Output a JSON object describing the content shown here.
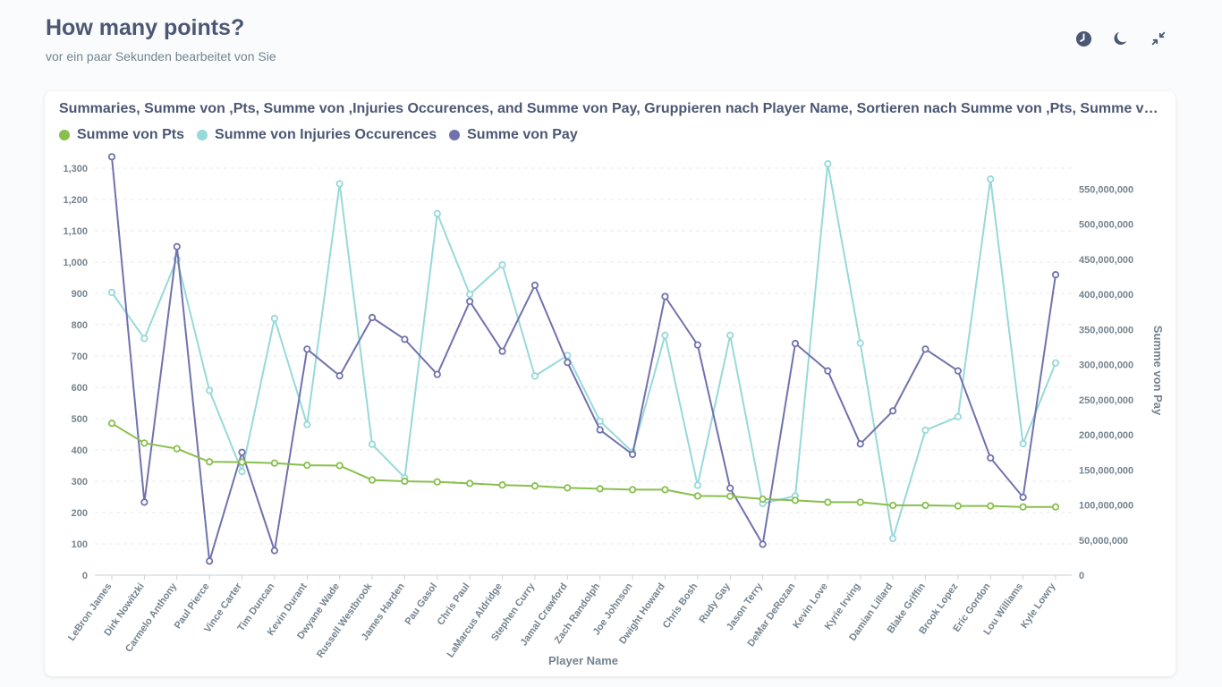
{
  "page": {
    "title": "How many points?",
    "subtitle": "vor ein paar Sekunden bearbeitet von Sie"
  },
  "header_actions": [
    {
      "icon": "clock-icon"
    },
    {
      "icon": "moon-icon"
    },
    {
      "icon": "collapse-icon"
    }
  ],
  "card": {
    "title": "Summaries, Summe von ,Pts, Summe von ,Injuries Occurences, and Summe von Pay, Gruppieren nach Player Name, Sortieren nach Summe von ,Pts, Summe von ,Injuries Occurences, and Summe von Pay"
  },
  "chart_data": {
    "type": "line",
    "xlabel": "Player Name",
    "ylabel_left": "",
    "ylabel_right": "Summe von Pay",
    "categories": [
      "LeBron James",
      "Dirk Nowitzki",
      "Carmelo Anthony",
      "Paul Pierce",
      "Vince Carter",
      "Tim Duncan",
      "Kevin Durant",
      "Dwyane Wade",
      "Russell Westbrook",
      "James Harden",
      "Pau Gasol",
      "Chris Paul",
      "LaMarcus Aldridge",
      "Stephen Curry",
      "Jamal Crawford",
      "Zach Randolph",
      "Joe Johnson",
      "Dwight Howard",
      "Chris Bosh",
      "Rudy Gay",
      "Jason Terry",
      "DeMar DeRozan",
      "Kevin Love",
      "Kyrie Irving",
      "Damian Lillard",
      "Blake Griffin",
      "Brook Lopez",
      "Eric Gordon",
      "Lou Williams",
      "Kyle Lowry"
    ],
    "left_axis": {
      "min": 0,
      "max": 1300,
      "ticks": [
        0,
        100,
        200,
        300,
        400,
        500,
        600,
        700,
        800,
        900,
        1000,
        1100,
        1200,
        1300
      ],
      "tick_labels": [
        "0",
        "100",
        "200",
        "300",
        "400",
        "500",
        "600",
        "700",
        "800",
        "900",
        "1,000",
        "1,100",
        "1,200",
        "1,300"
      ]
    },
    "right_axis": {
      "min": 0,
      "max": 590000000,
      "ticks": [
        0,
        50000000,
        100000000,
        150000000,
        200000000,
        250000000,
        300000000,
        350000000,
        400000000,
        450000000,
        500000000,
        550000000
      ],
      "tick_labels": [
        "0",
        "50,000,000",
        "100,000,000",
        "150,000,000",
        "200,000,000",
        "250,000,000",
        "300,000,000",
        "350,000,000",
        "400,000,000",
        "450,000,000",
        "500,000,000",
        "550,000,000"
      ]
    },
    "grid": true,
    "legend_position": "top-left",
    "series": [
      {
        "name": "Summe von Pts",
        "axis": "left",
        "color": "#88bf4d",
        "values": [
          485,
          422,
          404,
          362,
          361,
          358,
          351,
          350,
          304,
          300,
          298,
          293,
          288,
          285,
          279,
          276,
          273,
          273,
          253,
          252,
          243,
          239,
          233,
          233,
          223,
          223,
          221,
          221,
          218,
          218
        ]
      },
      {
        "name": "Summe von Injuries Occurences",
        "axis": "left",
        "color": "#98d9d9",
        "values": [
          903,
          756,
          1010,
          590,
          331,
          820,
          481,
          1250,
          418,
          311,
          1155,
          897,
          991,
          636,
          702,
          492,
          393,
          766,
          287,
          766,
          229,
          253,
          1314,
          741,
          117,
          463,
          506,
          1265,
          420,
          678
        ]
      },
      {
        "name": "Summe von Pay",
        "axis": "right",
        "color": "#7172ad",
        "values": [
          596000000,
          104000000,
          468000000,
          20000000,
          175000000,
          35000000,
          322000000,
          284000000,
          367000000,
          336000000,
          286000000,
          390000000,
          319000000,
          413000000,
          303000000,
          207000000,
          172000000,
          397000000,
          328000000,
          124000000,
          44000000,
          330000000,
          291000000,
          187000000,
          234000000,
          322000000,
          291000000,
          167000000,
          111000000,
          428000000
        ]
      }
    ]
  }
}
